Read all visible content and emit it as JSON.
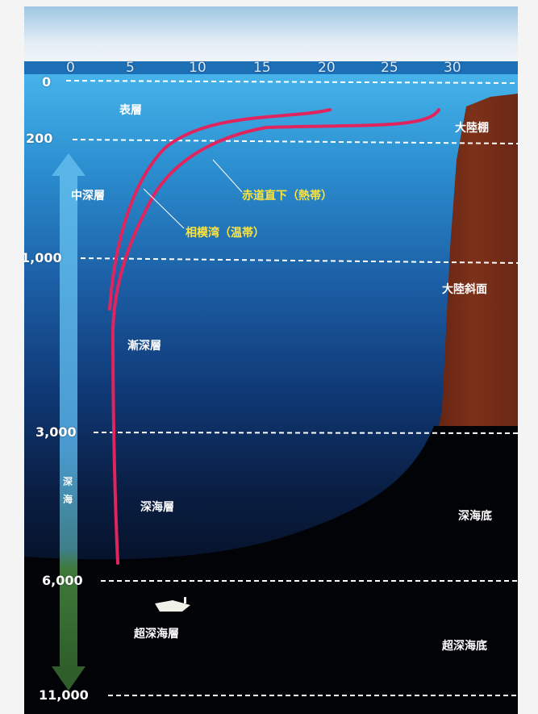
{
  "temperature_axis": {
    "ticks": [
      "0",
      "5",
      "10",
      "15",
      "20",
      "25",
      "30"
    ]
  },
  "depth_axis": {
    "ticks": [
      "0",
      "200",
      "1,000",
      "3,000",
      "6,000",
      "11,000"
    ]
  },
  "zones": {
    "surface": "表層",
    "mesopelagic": "中深層",
    "bathypelagic": "漸深層",
    "abyssopelagic": "深海層",
    "hadal": "超深海層"
  },
  "seafloor": {
    "shelf": "大陸棚",
    "slope": "大陸斜面",
    "abyssal_plain": "深海底",
    "hadal_floor": "超深海底"
  },
  "curves": {
    "tropical": "赤道直下（熱帯）",
    "temperate": "相模湾（温帯）",
    "color": "#e0245e"
  },
  "arrow": {
    "text_chars": [
      "深",
      "海"
    ],
    "upper_color": "#5ab6e8",
    "lower_color": "#3f7a3a"
  },
  "colors": {
    "sky": "#cfe4f1",
    "surface_water": "#2e8fd0",
    "deep_water": "#0a1f45",
    "land": "#7a2d17",
    "seabed": "#020306"
  }
}
